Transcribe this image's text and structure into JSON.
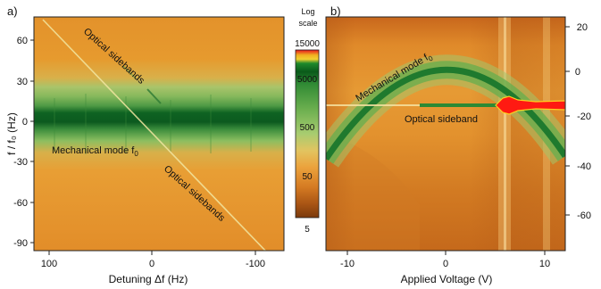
{
  "figure": {
    "panel_a": {
      "label": "a)",
      "xlabel": "Detuning Δf (Hz)",
      "ylabel": "f / f₀ (Hz)",
      "x_ticks": [
        "100",
        "0",
        "-100"
      ],
      "y_ticks": [
        "60",
        "30",
        "0",
        "-30",
        "-60",
        "-90"
      ],
      "annotations": {
        "sidebands_top": "Optical sidebands",
        "sidebands_bottom": "Optical sidebands",
        "mechanical_mode": "Mechanical mode f",
        "mechanical_sub": "0"
      }
    },
    "colorbar": {
      "title_line1": "Log",
      "title_line2": "scale",
      "ticks": [
        "15000",
        "5000",
        "500",
        "50",
        "5"
      ]
    },
    "panel_b": {
      "label": "b)",
      "xlabel": "Applied Voltage (V)",
      "x_ticks": [
        "-10",
        "0",
        "10"
      ],
      "y_ticks": [
        "20",
        "0",
        "-20",
        "-40",
        "-60"
      ],
      "annotations": {
        "mechanical_mode": "Mechanical  mode  f",
        "mechanical_sub": "0",
        "optical_sideband": "Optical sideband"
      }
    }
  },
  "chart_data": [
    {
      "type": "heatmap",
      "panel": "a",
      "xlabel": "Detuning Δf (Hz)",
      "ylabel": "f / f₀ (Hz)",
      "xlim": [
        123,
        -132
      ],
      "ylim": [
        -95,
        75
      ],
      "x_ticks": [
        100,
        0,
        -100
      ],
      "y_ticks": [
        60,
        30,
        0,
        -30,
        -60,
        -90
      ],
      "features": [
        {
          "name": "Mechanical mode f0",
          "kind": "horizontal band",
          "y": 0
        },
        {
          "name": "Optical sidebands",
          "kind": "diagonal line",
          "slope": 0.8,
          "through": [
            0,
            0
          ]
        }
      ]
    },
    {
      "type": "heatmap",
      "panel": "b",
      "xlabel": "Applied Voltage (V)",
      "ylabel": "",
      "xlim": [
        -12,
        12
      ],
      "ylim": [
        -75,
        20
      ],
      "x_ticks": [
        -10,
        0,
        10
      ],
      "y_ticks": [
        20,
        0,
        -20,
        -40,
        -60
      ],
      "features": [
        {
          "name": "Mechanical mode f0",
          "kind": "parabola",
          "points": [
            [
              -12,
              -24
            ],
            [
              -8,
              -10
            ],
            [
              -4,
              -2
            ],
            [
              0,
              0
            ],
            [
              4,
              -2
            ],
            [
              8,
              -9
            ],
            [
              12,
              -23
            ]
          ]
        },
        {
          "name": "Optical sideband",
          "kind": "horizontal line",
          "y": -13
        }
      ]
    }
  ]
}
